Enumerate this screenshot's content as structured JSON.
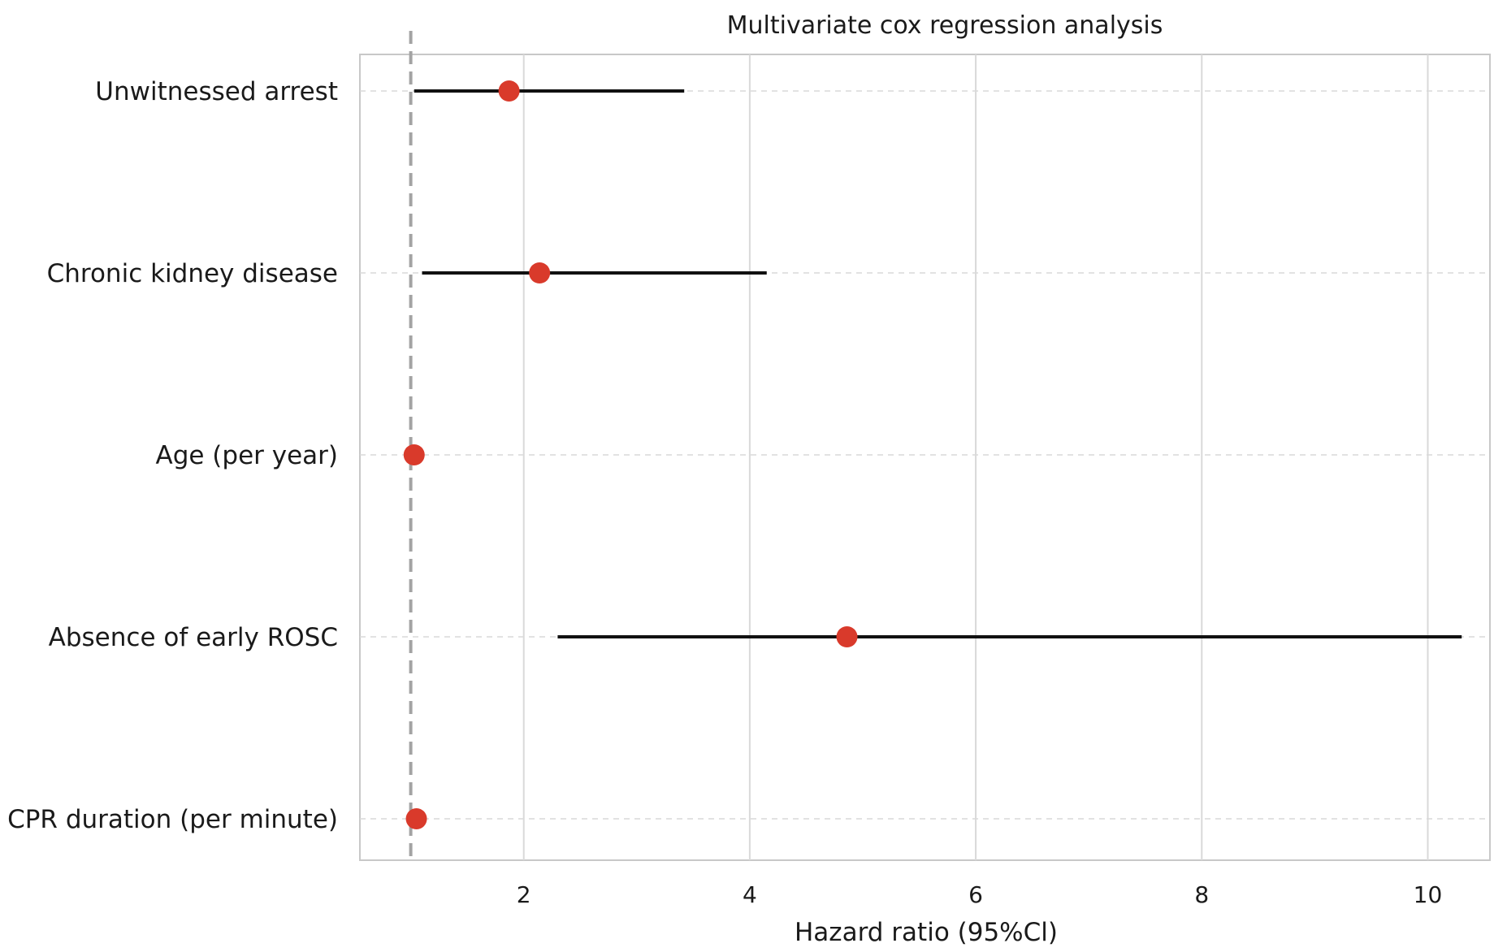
{
  "chart_data": {
    "type": "forest",
    "title": "Multivariate cox regression analysis",
    "xlabel": "Hazard ratio (95%Cl)",
    "ylabel": "",
    "xlim": [
      0.55,
      10.55
    ],
    "xticks": [
      2,
      4,
      6,
      8,
      10
    ],
    "reference_line": 1,
    "grid": {
      "vertical": true,
      "horizontal": "dashed"
    },
    "colors": {
      "point": "#d93a2b",
      "ci": "#111111",
      "reference": "#a3a3a3",
      "grid": "#d9d9d9",
      "frame": "#c8c8c8"
    },
    "rows": [
      {
        "label": "Unwitnessed arrest",
        "hr": 1.87,
        "ci_low": 1.03,
        "ci_high": 3.42
      },
      {
        "label": "Chronic kidney disease",
        "hr": 2.14,
        "ci_low": 1.1,
        "ci_high": 4.15
      },
      {
        "label": "Age (per year)",
        "hr": 1.03,
        "ci_low": 1.01,
        "ci_high": 1.05
      },
      {
        "label": "Absence of early ROSC",
        "hr": 4.86,
        "ci_low": 2.3,
        "ci_high": 10.3
      },
      {
        "label": "CPR duration (per minute)",
        "hr": 1.05,
        "ci_low": 1.02,
        "ci_high": 1.08
      }
    ]
  }
}
